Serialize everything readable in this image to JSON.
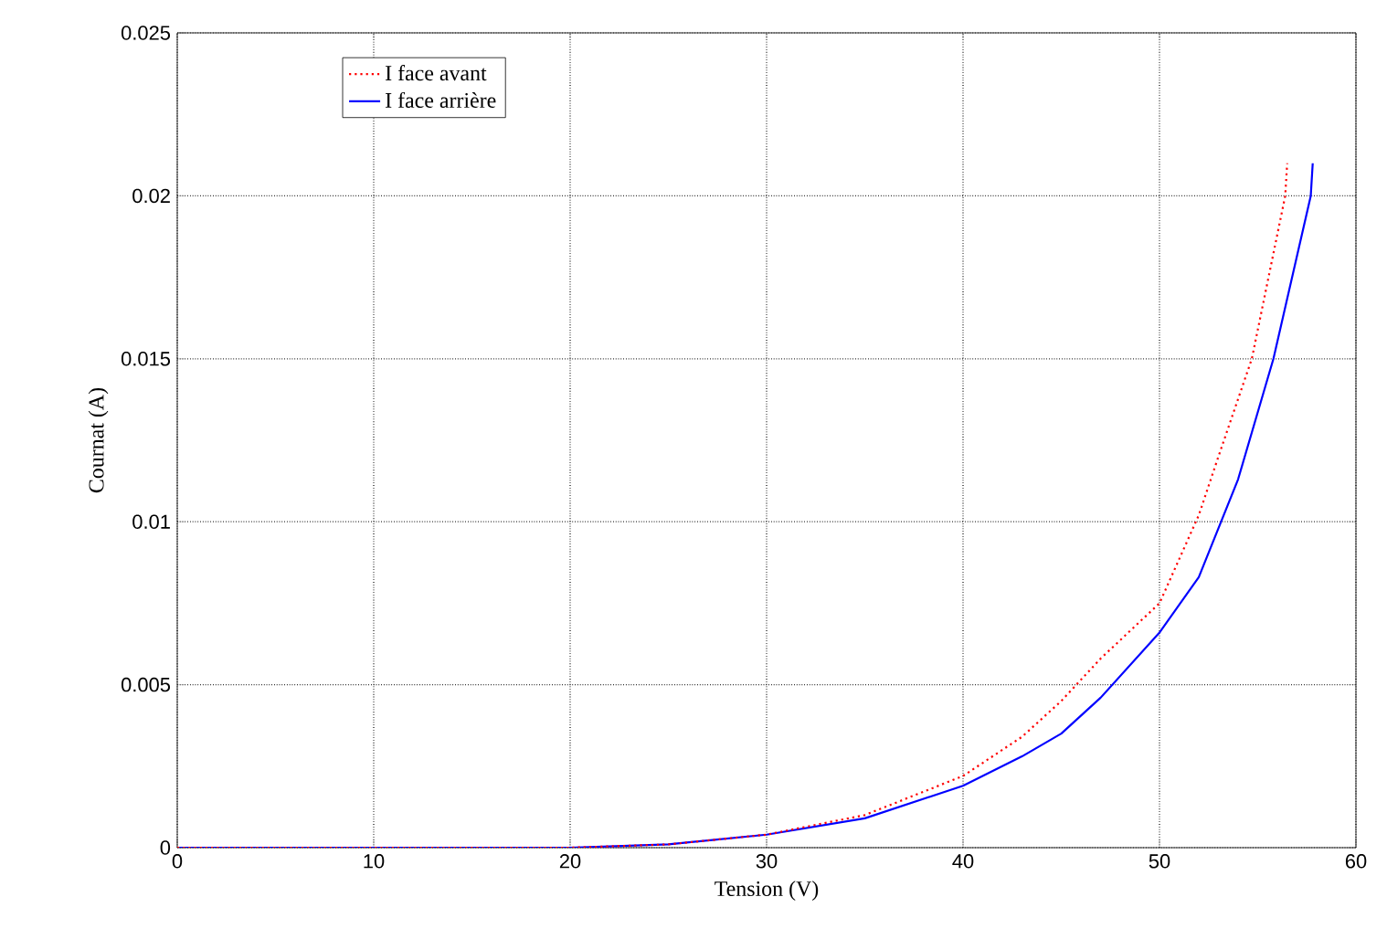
{
  "chart_data": {
    "type": "line",
    "xlabel": "Tension (V)",
    "ylabel": "Cournat (A)",
    "xlim": [
      0,
      60
    ],
    "ylim": [
      0,
      0.025
    ],
    "xticks": [
      0,
      10,
      20,
      30,
      40,
      50,
      60
    ],
    "yticks": [
      0,
      0.005,
      0.01,
      0.015,
      0.02,
      0.025
    ],
    "grid": true,
    "legend": "top left",
    "series": [
      {
        "name": "I face avant",
        "color": "#ff0000",
        "line_style": "dotted",
        "x": [
          0,
          10,
          20,
          25,
          30,
          35,
          40,
          43,
          45,
          47,
          50,
          52,
          53,
          54.7,
          56.4,
          56.5
        ],
        "values": [
          0,
          0,
          0,
          0.0001,
          0.0004,
          0.001,
          0.0022,
          0.0034,
          0.0045,
          0.0058,
          0.0075,
          0.0102,
          0.012,
          0.015,
          0.02,
          0.021
        ]
      },
      {
        "name": "I face arrière",
        "color": "#0000ff",
        "line_style": "solid",
        "x": [
          0,
          10,
          20,
          25,
          30,
          35,
          40,
          43,
          45,
          47,
          50,
          52,
          54,
          55.8,
          57.7,
          57.8
        ],
        "values": [
          0,
          0,
          0,
          0.0001,
          0.0004,
          0.0009,
          0.0019,
          0.0028,
          0.0035,
          0.0046,
          0.0066,
          0.0083,
          0.0113,
          0.015,
          0.02,
          0.021
        ]
      }
    ]
  }
}
